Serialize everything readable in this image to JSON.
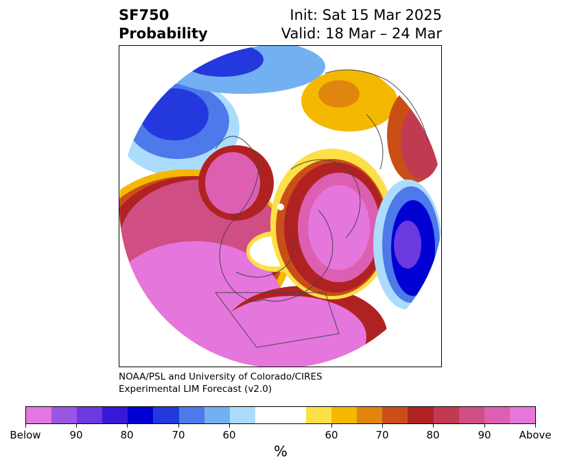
{
  "title": {
    "variable": "SF750",
    "product": "Probability",
    "init": "Init: Sat 15 Mar 2025",
    "valid": "Valid: 18 Mar – 24 Mar"
  },
  "credit": {
    "line1": "NOAA/PSL and University of Colorado/CIRES",
    "line2": "Experimental LIM Forecast (v2.0)"
  },
  "colorbar": {
    "unit": "%",
    "colors": [
      "#e376e2",
      "#9a55e3",
      "#6b39df",
      "#3a17d9",
      "#0000d2",
      "#2339dd",
      "#4d79ea",
      "#73b0f1",
      "#acdcfc",
      "#ffffff",
      "#ffffff",
      "#fde047",
      "#f5b800",
      "#e0860f",
      "#c94f17",
      "#b02222",
      "#c23a52",
      "#cf4f84",
      "#dd5fb2",
      "#e576dc"
    ],
    "ticks": [
      "Below",
      "90",
      "80",
      "70",
      "60",
      "60",
      "70",
      "80",
      "90",
      "Above"
    ]
  }
}
